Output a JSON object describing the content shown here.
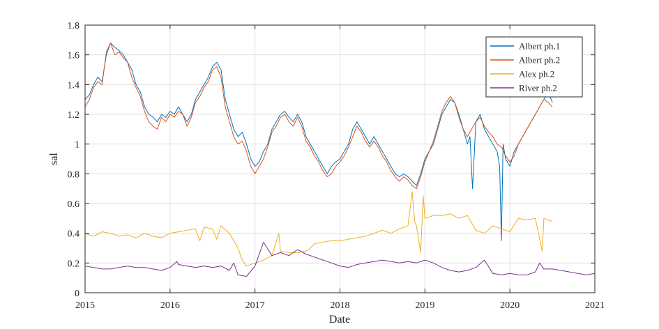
{
  "chart_data": {
    "type": "line",
    "xlabel": "Date",
    "ylabel": "sal",
    "xlim": [
      2015,
      2021
    ],
    "ylim": [
      0,
      1.8
    ],
    "x_ticks": [
      2015,
      2016,
      2017,
      2018,
      2019,
      2020,
      2021
    ],
    "x_tick_labels": [
      "2015",
      "2016",
      "2017",
      "2018",
      "2019",
      "2020",
      "2021"
    ],
    "y_ticks": [
      0,
      0.2,
      0.4,
      0.6,
      0.8,
      1,
      1.2,
      1.4,
      1.6,
      1.8
    ],
    "y_tick_labels": [
      "0",
      "0.2",
      "0.4",
      "0.6",
      "0.8",
      "1",
      "1.2",
      "1.4",
      "1.6",
      "1.8"
    ],
    "grid": true,
    "legend_position": "top-right",
    "series": [
      {
        "name": "Albert ph.1",
        "color": "#0072BD",
        "x": [
          2015.0,
          2015.05,
          2015.1,
          2015.15,
          2015.2,
          2015.25,
          2015.3,
          2015.35,
          2015.4,
          2015.45,
          2015.5,
          2015.55,
          2015.6,
          2015.65,
          2015.7,
          2015.75,
          2015.8,
          2015.85,
          2015.9,
          2015.95,
          2016.0,
          2016.05,
          2016.1,
          2016.15,
          2016.2,
          2016.25,
          2016.3,
          2016.35,
          2016.4,
          2016.45,
          2016.5,
          2016.55,
          2016.6,
          2016.65,
          2016.7,
          2016.75,
          2016.8,
          2016.85,
          2016.9,
          2016.95,
          2017.0,
          2017.05,
          2017.1,
          2017.15,
          2017.2,
          2017.25,
          2017.3,
          2017.35,
          2017.4,
          2017.45,
          2017.5,
          2017.55,
          2017.6,
          2017.65,
          2017.7,
          2017.75,
          2017.8,
          2017.85,
          2017.9,
          2017.95,
          2018.0,
          2018.05,
          2018.1,
          2018.15,
          2018.2,
          2018.25,
          2018.3,
          2018.35,
          2018.4,
          2018.45,
          2018.5,
          2018.55,
          2018.6,
          2018.65,
          2018.7,
          2018.75,
          2018.8,
          2018.85,
          2018.9,
          2018.95,
          2019.0,
          2019.05,
          2019.1,
          2019.15,
          2019.2,
          2019.25,
          2019.3,
          2019.35,
          2019.4,
          2019.45,
          2019.5,
          2019.53,
          2019.56,
          2019.6,
          2019.65,
          2019.7,
          2019.75,
          2019.8,
          2019.85,
          2019.88,
          2019.9,
          2019.92,
          2019.95,
          2020.0,
          2020.05,
          2020.1,
          2020.15,
          2020.2,
          2020.25,
          2020.3,
          2020.35,
          2020.4,
          2020.45,
          2020.5
        ],
        "y": [
          1.3,
          1.33,
          1.4,
          1.45,
          1.42,
          1.6,
          1.68,
          1.65,
          1.63,
          1.6,
          1.55,
          1.5,
          1.4,
          1.35,
          1.25,
          1.2,
          1.18,
          1.15,
          1.2,
          1.18,
          1.22,
          1.2,
          1.25,
          1.2,
          1.15,
          1.2,
          1.3,
          1.35,
          1.4,
          1.45,
          1.52,
          1.55,
          1.5,
          1.3,
          1.2,
          1.1,
          1.05,
          1.08,
          1.0,
          0.9,
          0.85,
          0.88,
          0.95,
          1.0,
          1.1,
          1.15,
          1.2,
          1.22,
          1.18,
          1.15,
          1.2,
          1.15,
          1.05,
          1.0,
          0.95,
          0.9,
          0.85,
          0.8,
          0.85,
          0.88,
          0.9,
          0.95,
          1.0,
          1.1,
          1.15,
          1.1,
          1.05,
          1.0,
          1.05,
          1.0,
          0.95,
          0.9,
          0.85,
          0.8,
          0.78,
          0.8,
          0.78,
          0.75,
          0.72,
          0.8,
          0.9,
          0.95,
          1.0,
          1.1,
          1.2,
          1.25,
          1.3,
          1.28,
          1.2,
          1.1,
          1.0,
          1.05,
          0.7,
          1.15,
          1.2,
          1.1,
          1.05,
          1.0,
          0.95,
          0.85,
          0.35,
          1.0,
          0.9,
          0.85,
          0.95,
          1.0,
          1.05,
          1.1,
          1.15,
          1.2,
          1.25,
          1.3,
          1.35,
          1.28
        ]
      },
      {
        "name": "Albert ph.2",
        "color": "#D95319",
        "x": [
          2015.0,
          2015.05,
          2015.1,
          2015.15,
          2015.2,
          2015.25,
          2015.3,
          2015.35,
          2015.4,
          2015.45,
          2015.5,
          2015.55,
          2015.6,
          2015.65,
          2015.7,
          2015.75,
          2015.8,
          2015.85,
          2015.9,
          2015.95,
          2016.0,
          2016.05,
          2016.1,
          2016.15,
          2016.2,
          2016.25,
          2016.3,
          2016.35,
          2016.4,
          2016.45,
          2016.5,
          2016.55,
          2016.6,
          2016.65,
          2016.7,
          2016.75,
          2016.8,
          2016.85,
          2016.9,
          2016.95,
          2017.0,
          2017.05,
          2017.1,
          2017.15,
          2017.2,
          2017.25,
          2017.3,
          2017.35,
          2017.4,
          2017.45,
          2017.5,
          2017.55,
          2017.6,
          2017.65,
          2017.7,
          2017.75,
          2017.8,
          2017.85,
          2017.9,
          2017.95,
          2018.0,
          2018.05,
          2018.1,
          2018.15,
          2018.2,
          2018.25,
          2018.3,
          2018.35,
          2018.4,
          2018.45,
          2018.5,
          2018.55,
          2018.6,
          2018.65,
          2018.7,
          2018.75,
          2018.8,
          2018.85,
          2018.9,
          2018.95,
          2019.0,
          2019.05,
          2019.1,
          2019.15,
          2019.2,
          2019.25,
          2019.3,
          2019.35,
          2019.4,
          2019.45,
          2019.5,
          2019.55,
          2019.6,
          2019.65,
          2019.7,
          2019.75,
          2019.8,
          2019.85,
          2019.9,
          2019.95,
          2020.0,
          2020.05,
          2020.1,
          2020.15,
          2020.2,
          2020.25,
          2020.3,
          2020.35,
          2020.4,
          2020.45,
          2020.5
        ],
        "y": [
          1.25,
          1.3,
          1.38,
          1.42,
          1.4,
          1.62,
          1.68,
          1.6,
          1.62,
          1.58,
          1.55,
          1.45,
          1.38,
          1.32,
          1.22,
          1.15,
          1.12,
          1.1,
          1.18,
          1.15,
          1.2,
          1.18,
          1.22,
          1.2,
          1.12,
          1.18,
          1.28,
          1.32,
          1.38,
          1.42,
          1.5,
          1.52,
          1.45,
          1.25,
          1.15,
          1.05,
          1.0,
          1.02,
          0.95,
          0.85,
          0.8,
          0.85,
          0.9,
          0.98,
          1.08,
          1.12,
          1.18,
          1.2,
          1.15,
          1.12,
          1.18,
          1.12,
          1.02,
          0.98,
          0.92,
          0.88,
          0.82,
          0.78,
          0.8,
          0.85,
          0.88,
          0.92,
          0.98,
          1.05,
          1.12,
          1.08,
          1.02,
          0.98,
          1.02,
          0.98,
          0.92,
          0.88,
          0.82,
          0.78,
          0.75,
          0.78,
          0.76,
          0.72,
          0.7,
          0.78,
          0.88,
          0.95,
          1.02,
          1.12,
          1.22,
          1.28,
          1.32,
          1.28,
          1.18,
          1.1,
          1.05,
          1.1,
          1.15,
          1.18,
          1.12,
          1.08,
          1.05,
          1.0,
          0.98,
          0.92,
          0.88,
          0.92,
          1.0,
          1.05,
          1.1,
          1.15,
          1.2,
          1.25,
          1.3,
          1.28,
          1.25
        ]
      },
      {
        "name": "Alex ph.2",
        "color": "#EDB120",
        "x": [
          2015.0,
          2015.1,
          2015.2,
          2015.3,
          2015.4,
          2015.5,
          2015.6,
          2015.7,
          2015.8,
          2015.9,
          2016.0,
          2016.1,
          2016.2,
          2016.3,
          2016.35,
          2016.4,
          2016.5,
          2016.55,
          2016.6,
          2016.7,
          2016.8,
          2016.85,
          2016.9,
          2017.0,
          2017.1,
          2017.2,
          2017.28,
          2017.3,
          2017.4,
          2017.5,
          2017.6,
          2017.65,
          2017.7,
          2017.8,
          2017.9,
          2018.0,
          2018.1,
          2018.2,
          2018.3,
          2018.4,
          2018.5,
          2018.6,
          2018.7,
          2018.8,
          2018.85,
          2018.88,
          2018.9,
          2018.95,
          2018.98,
          2019.0,
          2019.1,
          2019.2,
          2019.3,
          2019.4,
          2019.5,
          2019.6,
          2019.7,
          2019.8,
          2019.9,
          2020.0,
          2020.1,
          2020.2,
          2020.3,
          2020.38,
          2020.4,
          2020.5
        ],
        "y": [
          0.4,
          0.38,
          0.41,
          0.4,
          0.38,
          0.39,
          0.37,
          0.4,
          0.38,
          0.37,
          0.4,
          0.41,
          0.42,
          0.43,
          0.35,
          0.44,
          0.43,
          0.36,
          0.45,
          0.4,
          0.3,
          0.22,
          0.18,
          0.2,
          0.22,
          0.25,
          0.4,
          0.28,
          0.27,
          0.27,
          0.28,
          0.3,
          0.33,
          0.34,
          0.35,
          0.35,
          0.36,
          0.37,
          0.38,
          0.4,
          0.42,
          0.4,
          0.43,
          0.45,
          0.68,
          0.48,
          0.45,
          0.27,
          0.65,
          0.5,
          0.52,
          0.52,
          0.53,
          0.5,
          0.52,
          0.42,
          0.4,
          0.45,
          0.43,
          0.41,
          0.5,
          0.49,
          0.5,
          0.28,
          0.5,
          0.48
        ]
      },
      {
        "name": "River ph.2",
        "color": "#7E2F8E",
        "x": [
          2015.0,
          2015.1,
          2015.2,
          2015.3,
          2015.4,
          2015.5,
          2015.6,
          2015.7,
          2015.8,
          2015.9,
          2016.0,
          2016.08,
          2016.1,
          2016.2,
          2016.3,
          2016.4,
          2016.5,
          2016.6,
          2016.7,
          2016.75,
          2016.8,
          2016.9,
          2017.0,
          2017.1,
          2017.2,
          2017.3,
          2017.4,
          2017.5,
          2017.6,
          2017.7,
          2017.8,
          2017.9,
          2018.0,
          2018.1,
          2018.2,
          2018.3,
          2018.4,
          2018.5,
          2018.6,
          2018.7,
          2018.8,
          2018.9,
          2019.0,
          2019.1,
          2019.2,
          2019.3,
          2019.4,
          2019.5,
          2019.6,
          2019.7,
          2019.8,
          2019.9,
          2020.0,
          2020.1,
          2020.2,
          2020.3,
          2020.35,
          2020.4,
          2020.5,
          2020.6,
          2020.7,
          2020.8,
          2020.9,
          2021.0
        ],
        "y": [
          0.18,
          0.17,
          0.16,
          0.16,
          0.17,
          0.18,
          0.17,
          0.17,
          0.16,
          0.15,
          0.17,
          0.21,
          0.19,
          0.18,
          0.17,
          0.18,
          0.17,
          0.18,
          0.15,
          0.2,
          0.12,
          0.11,
          0.18,
          0.34,
          0.25,
          0.27,
          0.25,
          0.29,
          0.26,
          0.24,
          0.22,
          0.2,
          0.18,
          0.17,
          0.19,
          0.2,
          0.21,
          0.22,
          0.21,
          0.2,
          0.21,
          0.2,
          0.22,
          0.2,
          0.17,
          0.15,
          0.14,
          0.15,
          0.17,
          0.22,
          0.13,
          0.12,
          0.13,
          0.12,
          0.12,
          0.14,
          0.2,
          0.16,
          0.16,
          0.15,
          0.14,
          0.13,
          0.12,
          0.13
        ]
      }
    ]
  }
}
